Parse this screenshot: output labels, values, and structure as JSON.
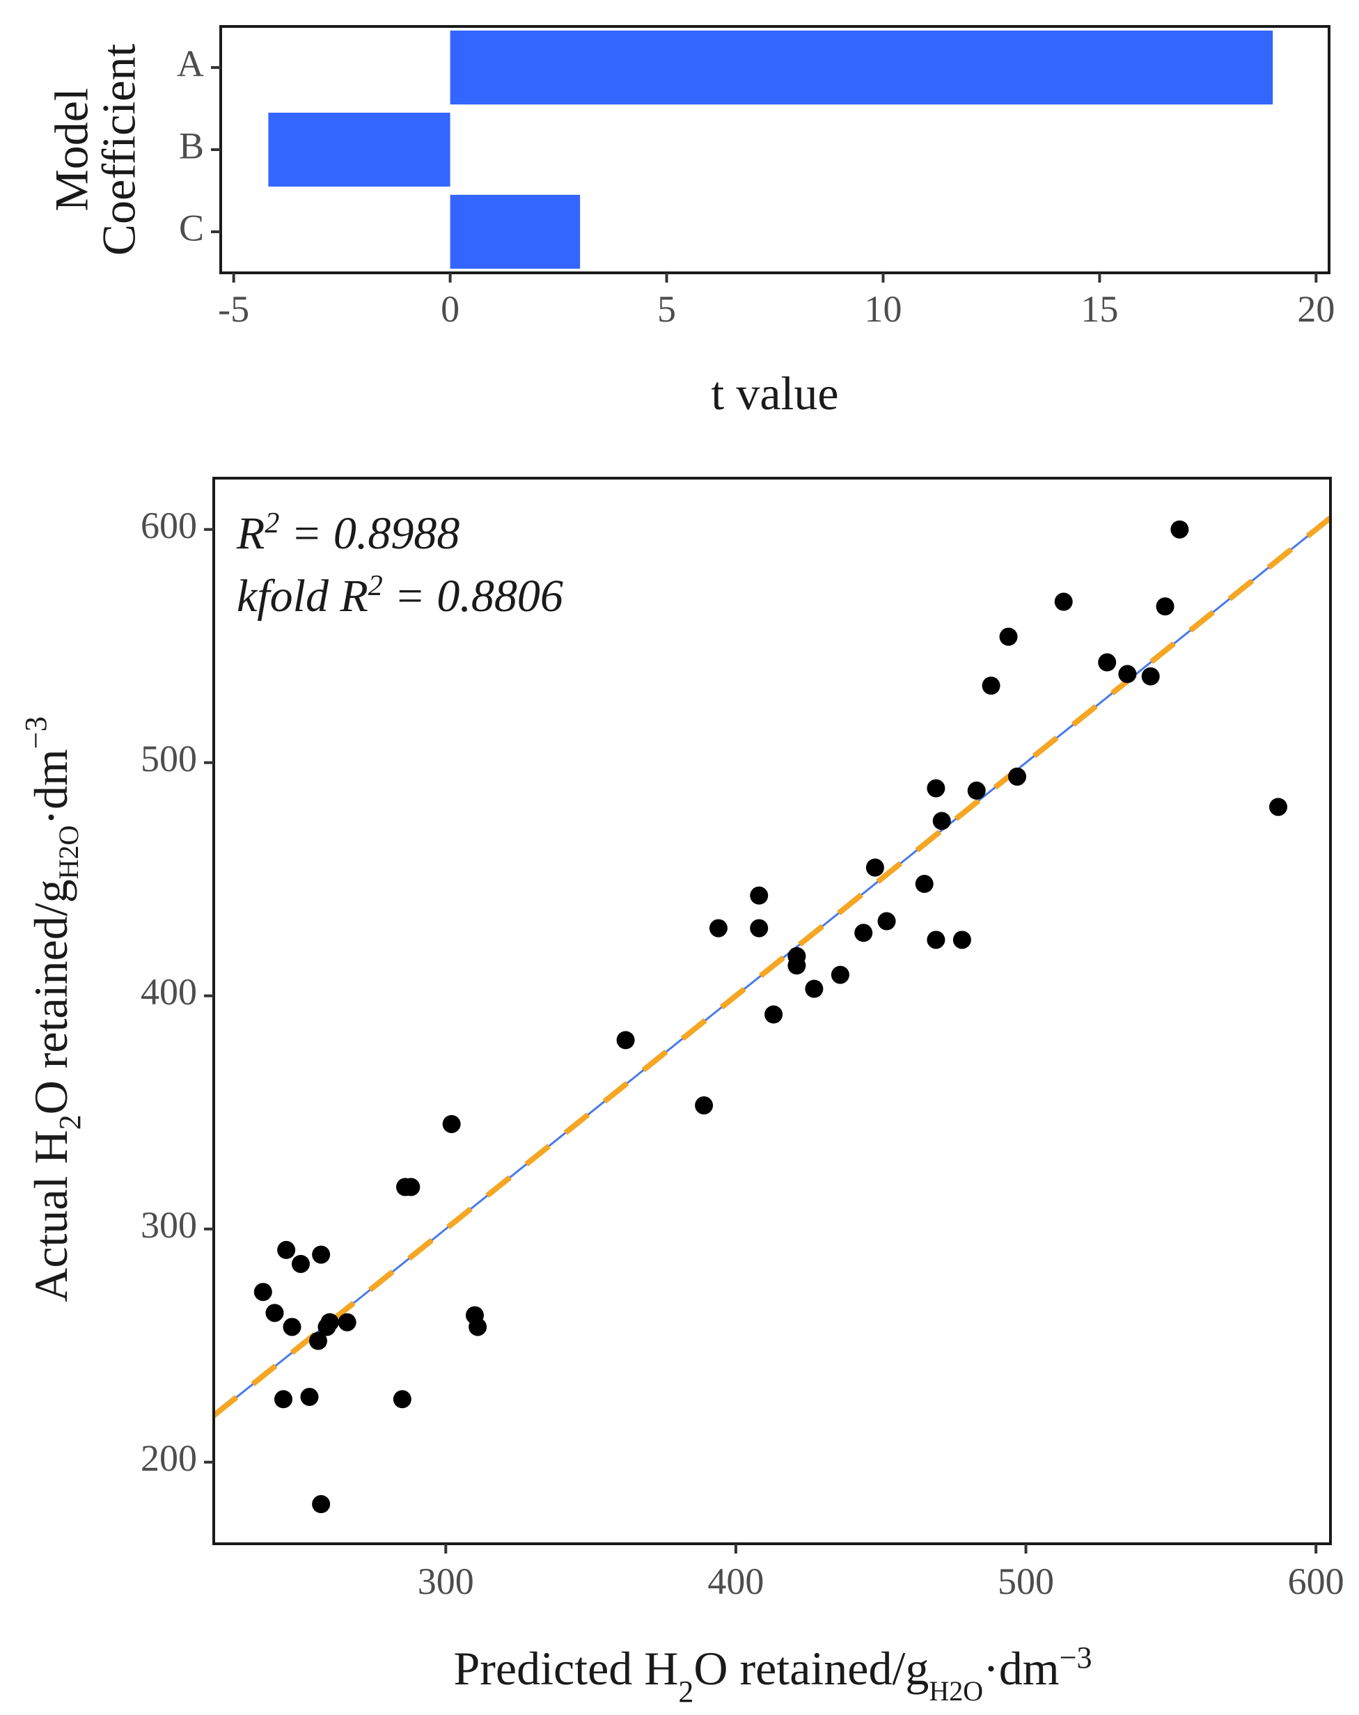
{
  "chart_data": [
    {
      "type": "bar",
      "orientation": "horizontal",
      "categories": [
        "A",
        "B",
        "C"
      ],
      "values": [
        19.0,
        -4.2,
        3.0
      ],
      "xlabel": "t value",
      "ylabel": "Model Coefficient",
      "ylabel_lines": [
        "Model",
        "Coefficient"
      ],
      "xlim": [
        -5.3,
        20.3
      ],
      "xticks": [
        -5,
        0,
        5,
        10,
        15,
        20
      ],
      "xtick_labels": [
        "-5",
        "0",
        "5",
        "10",
        "15",
        "20"
      ],
      "bar_color": "#3366ff",
      "grid": false
    },
    {
      "type": "scatter",
      "x": [
        237,
        241,
        244,
        245,
        247,
        250,
        253,
        256,
        257,
        257,
        259,
        260,
        260,
        266,
        285,
        286,
        288,
        302,
        310,
        311,
        362,
        389,
        394,
        408,
        408,
        413,
        421,
        421,
        427,
        436,
        444,
        448,
        452,
        465,
        469,
        469,
        471,
        478,
        483,
        488,
        494,
        497,
        513,
        528,
        535,
        543,
        548,
        553,
        587
      ],
      "y": [
        273,
        264,
        227,
        291,
        258,
        285,
        228,
        252,
        289,
        182,
        258,
        260,
        260,
        260,
        227,
        318,
        318,
        345,
        263,
        258,
        381,
        353,
        429,
        443,
        429,
        392,
        417,
        413,
        403,
        409,
        427,
        455,
        432,
        448,
        489,
        424,
        475,
        424,
        488,
        533,
        554,
        494,
        569,
        543,
        538,
        537,
        567,
        600,
        481
      ],
      "fit_line": {
        "x": [
          220,
          605
        ],
        "y": [
          220,
          605
        ],
        "color": "#4a7ae8"
      },
      "identity_line": {
        "x": [
          220,
          605
        ],
        "y": [
          220,
          605
        ],
        "color": "#f5a623",
        "style": "dashed"
      },
      "annotations": [
        {
          "prefix": "R",
          "sup": "2",
          "suffix": " = 0.8988"
        },
        {
          "prefix": "kfold R",
          "sup": "2",
          "suffix": " = 0.8806"
        }
      ],
      "xlabel": {
        "main": "Predicted H",
        "sub1": "2",
        "mid": "O retained/g",
        "sub2": "H",
        "sub3": "2",
        "sub4": "O",
        "dot": "·",
        "unit": "dm",
        "sup": "−3"
      },
      "ylabel": {
        "main": "Actual H",
        "sub1": "2",
        "mid": "O retained/g",
        "sub2": "H",
        "sub3": "2",
        "sub4": "O",
        "dot": "·",
        "unit": "dm",
        "sup": "−3"
      },
      "xlim": [
        220,
        605
      ],
      "ylim": [
        165,
        622
      ],
      "xticks": [
        300,
        400,
        500,
        600
      ],
      "xtick_labels": [
        "300",
        "400",
        "500",
        "600"
      ],
      "yticks": [
        200,
        300,
        400,
        500,
        600
      ],
      "ytick_labels": [
        "200",
        "300",
        "400",
        "500",
        "600"
      ],
      "point_color": "#000000",
      "grid": false
    }
  ]
}
